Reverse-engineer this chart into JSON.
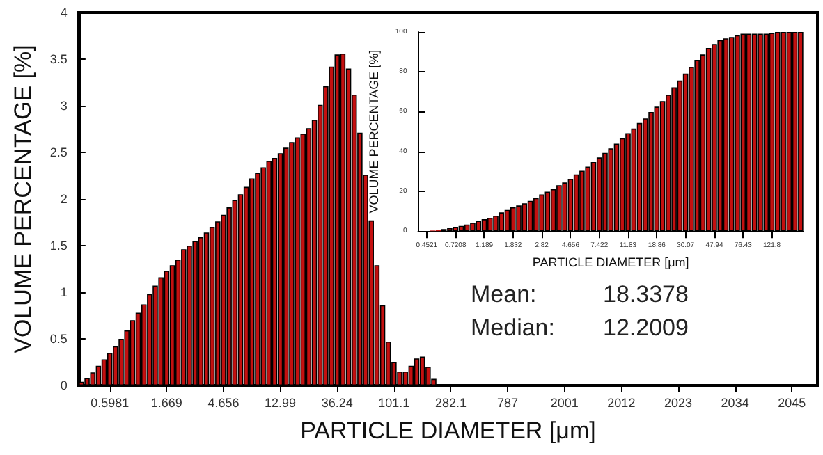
{
  "chart_data": [
    {
      "type": "bar",
      "xlabel": "PARTICLE DIAMETER [μm]",
      "ylabel": "VOLUME PERCENTAGE [%]",
      "color": "#c41010",
      "categories": [
        null,
        null,
        null,
        null,
        null,
        "0.5981",
        null,
        null,
        null,
        null,
        null,
        null,
        null,
        null,
        null,
        "1.669",
        null,
        null,
        null,
        null,
        null,
        null,
        null,
        null,
        null,
        "4.656",
        null,
        null,
        null,
        null,
        null,
        null,
        null,
        null,
        null,
        "12.99",
        null,
        null,
        null,
        null,
        null,
        null,
        null,
        null,
        null,
        "36.24",
        null,
        null,
        null,
        null,
        null,
        null,
        null,
        null,
        null,
        "101.1",
        null,
        null,
        null,
        null,
        null,
        null,
        null,
        null,
        null,
        "282.1",
        null,
        null,
        null,
        null,
        null,
        null,
        null,
        null,
        null,
        "787",
        null,
        null,
        null,
        null,
        null,
        null,
        null,
        null,
        null,
        "2001",
        null,
        null,
        null,
        null,
        null,
        null,
        null,
        null,
        null,
        "2012",
        null,
        null,
        null,
        null,
        null,
        null,
        null,
        null,
        null,
        "2023",
        null,
        null,
        null,
        null,
        null,
        null,
        null,
        null,
        null,
        "2034",
        null,
        null,
        null,
        null,
        null,
        null,
        null,
        null,
        null,
        "2045",
        null,
        null,
        null,
        null
      ],
      "values": [
        0.04,
        0.08,
        0.14,
        0.21,
        0.28,
        0.35,
        0.42,
        0.5,
        0.59,
        0.7,
        0.78,
        0.87,
        0.98,
        1.07,
        1.16,
        1.23,
        1.29,
        1.35,
        1.46,
        1.5,
        1.55,
        1.59,
        1.64,
        1.7,
        1.76,
        1.83,
        1.91,
        1.99,
        2.05,
        2.13,
        2.22,
        2.28,
        2.34,
        2.41,
        2.44,
        2.49,
        2.55,
        2.61,
        2.66,
        2.7,
        2.76,
        2.85,
        3.01,
        3.21,
        3.42,
        3.55,
        3.56,
        3.4,
        3.12,
        2.71,
        2.26,
        1.77,
        1.29,
        0.86,
        0.47,
        0.25,
        0.15,
        0.15,
        0.21,
        0.29,
        0.31,
        0.2,
        0.07,
        null,
        null,
        null,
        null,
        null,
        null,
        null,
        null,
        null,
        null,
        null,
        null,
        null,
        null,
        null,
        null,
        null,
        null,
        null,
        null,
        null,
        null,
        null,
        null,
        null,
        null,
        null,
        null,
        null,
        null,
        null,
        null,
        null,
        null,
        null,
        null,
        null,
        null,
        null,
        null,
        null,
        null,
        null,
        null,
        null,
        null,
        null,
        null,
        null,
        null,
        null,
        null,
        null,
        null,
        null,
        null,
        null,
        null,
        null,
        null,
        null,
        null,
        null,
        null,
        null,
        null,
        null
      ],
      "ylim": [
        0,
        4
      ],
      "yticks": [
        0,
        0.5,
        1,
        1.5,
        2,
        2.5,
        3,
        3.5,
        4
      ],
      "annotations": [
        "Mean:",
        "18.3378",
        "Median:",
        "12.2009"
      ]
    },
    {
      "type": "bar",
      "xlabel": "PARTICLE DIAMETER [μm]",
      "ylabel": "VOLUME PERCENTAGE [%]",
      "color": "#c41010",
      "categories": [
        null,
        "0.4521",
        null,
        null,
        null,
        null,
        "0.7208",
        null,
        null,
        null,
        null,
        "1.189",
        null,
        null,
        null,
        null,
        "1.832",
        null,
        null,
        null,
        null,
        "2.82",
        null,
        null,
        null,
        null,
        "4.656",
        null,
        null,
        null,
        null,
        "7.422",
        null,
        null,
        null,
        null,
        "11.83",
        null,
        null,
        null,
        null,
        "18.86",
        null,
        null,
        null,
        null,
        "30.07",
        null,
        null,
        null,
        null,
        "47.94",
        null,
        null,
        null,
        null,
        "76.43",
        null,
        null,
        null,
        null,
        "121.8",
        null,
        null,
        null,
        null,
        null
      ],
      "values": [
        null,
        null,
        0.3,
        0.6,
        1.0,
        1.5,
        2.0,
        2.6,
        3.3,
        4.2,
        5.2,
        6.0,
        6.7,
        7.8,
        9.4,
        10.6,
        12.0,
        12.9,
        14.0,
        15.2,
        16.6,
        18.4,
        19.8,
        21.1,
        23.0,
        24.4,
        26.2,
        28.5,
        30.3,
        32.4,
        34.7,
        37.0,
        39.3,
        41.6,
        43.9,
        46.7,
        49.2,
        51.5,
        54.3,
        56.6,
        59.8,
        62.5,
        65.3,
        68.5,
        72.2,
        75.6,
        79.1,
        82.5,
        86.0,
        88.7,
        92.0,
        94.0,
        95.9,
        96.8,
        97.5,
        98.4,
        99.1,
        99.1,
        99.1,
        99.1,
        99.1,
        99.5,
        100,
        100,
        100,
        100,
        100
      ],
      "ylim": [
        0,
        100
      ],
      "yticks": [
        0,
        20,
        40,
        60,
        80,
        100
      ]
    }
  ]
}
